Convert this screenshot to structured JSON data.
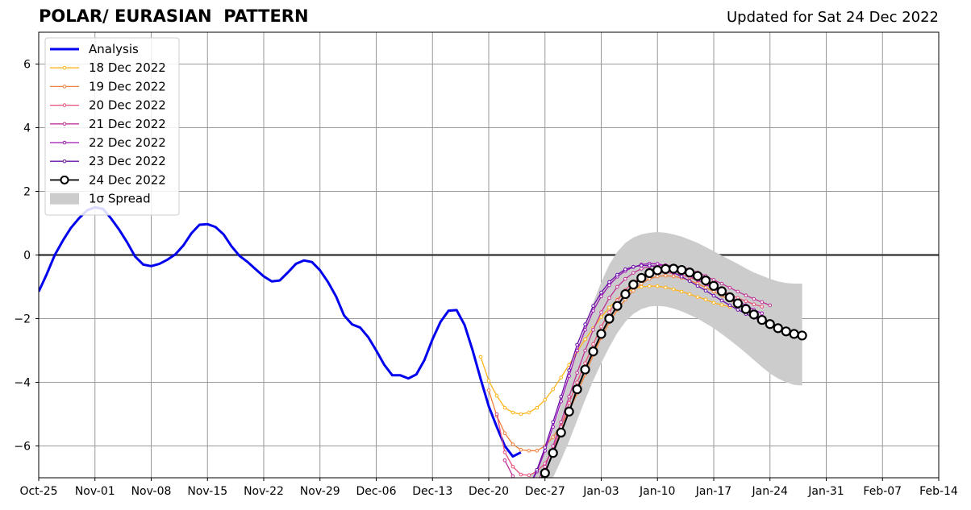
{
  "chart_data": {
    "type": "line",
    "title": "POLAR/ EURASIAN  PATTERN",
    "subtitle": "Updated for Sat 24 Dec 2022",
    "xlabel": "",
    "ylabel": "",
    "x_range": [
      "Oct-25",
      "Feb-14"
    ],
    "ylim": [
      -7,
      7
    ],
    "grid": true,
    "legend_position": "top-left",
    "x_tick_labels": [
      "Oct-25",
      "Nov-01",
      "Nov-08",
      "Nov-15",
      "Nov-22",
      "Nov-29",
      "Dec-06",
      "Dec-13",
      "Dec-20",
      "Dec-27",
      "Jan-03",
      "Jan-10",
      "Jan-17",
      "Jan-24",
      "Jan-31",
      "Feb-07",
      "Feb-14"
    ],
    "y_ticks": [
      -6,
      -4,
      -2,
      0,
      2,
      4,
      6
    ],
    "y_tick_labels": [
      "−6",
      "−4",
      "−2",
      "0",
      "2",
      "4",
      "6"
    ],
    "analysis": {
      "name": "Analysis",
      "color": "#0000ee",
      "start": "2022-10-25",
      "values": [
        -1.15,
        -0.6,
        0.0,
        0.45,
        0.85,
        1.15,
        1.4,
        1.5,
        1.45,
        1.15,
        0.8,
        0.4,
        -0.05,
        -0.3,
        -0.35,
        -0.28,
        -0.15,
        0.02,
        0.3,
        0.68,
        0.95,
        0.97,
        0.88,
        0.65,
        0.27,
        -0.03,
        -0.22,
        -0.45,
        -0.67,
        -0.83,
        -0.8,
        -0.55,
        -0.28,
        -0.17,
        -0.22,
        -0.48,
        -0.85,
        -1.3,
        -1.9,
        -2.18,
        -2.28,
        -2.58,
        -3.0,
        -3.45,
        -3.78,
        -3.78,
        -3.88,
        -3.75,
        -3.3,
        -2.65,
        -2.1,
        -1.75,
        -1.73,
        -2.2,
        -3.0,
        -3.9,
        -4.75,
        -5.4,
        -6.0,
        -6.33,
        -6.2
      ]
    },
    "forecasts": [
      {
        "name": "18 Dec 2022",
        "color": "#ffb31a",
        "start": "2022-12-19",
        "values": [
          -3.2,
          -3.95,
          -4.42,
          -4.8,
          -4.95,
          -5.0,
          -4.95,
          -4.8,
          -4.55,
          -4.22,
          -3.85,
          -3.45,
          -3.03,
          -2.65,
          -2.3,
          -1.95,
          -1.65,
          -1.4,
          -1.2,
          -1.07,
          -1.0,
          -0.98,
          -0.98,
          -1.02,
          -1.08,
          -1.15,
          -1.23,
          -1.32,
          -1.4,
          -1.5,
          -1.57,
          -1.63,
          -1.63
        ]
      },
      {
        "name": "19 Dec 2022",
        "color": "#f0803a",
        "start": "2022-12-20",
        "values": [
          -4.25,
          -5.05,
          -5.6,
          -5.95,
          -6.12,
          -6.15,
          -6.15,
          -6.0,
          -5.72,
          -5.35,
          -4.9,
          -4.35,
          -3.75,
          -3.15,
          -2.6,
          -2.12,
          -1.72,
          -1.4,
          -1.12,
          -0.9,
          -0.75,
          -0.67,
          -0.65,
          -0.67,
          -0.72,
          -0.8,
          -0.9,
          -1.02,
          -1.15,
          -1.28,
          -1.42,
          -1.55,
          -1.67
        ]
      },
      {
        "name": "20 Dec 2022",
        "color": "#e6507a",
        "start": "2022-12-21",
        "values": [
          -5.0,
          -6.2,
          -6.65,
          -6.9,
          -6.92,
          -6.8,
          -6.55,
          -6.1,
          -5.4,
          -4.65,
          -4.0,
          -3.4,
          -2.8,
          -2.25,
          -1.8,
          -1.42,
          -1.1,
          -0.85,
          -0.7,
          -0.6,
          -0.55,
          -0.55,
          -0.58,
          -0.63,
          -0.7,
          -0.8,
          -0.9,
          -1.0,
          -1.12,
          -1.23,
          -1.35,
          -1.45,
          -1.55,
          -1.62
        ]
      },
      {
        "name": "21 Dec 2022",
        "color": "#bf3399",
        "start": "2022-12-22",
        "values": [
          -6.45,
          -6.95,
          -7.3,
          -7.45,
          -7.15,
          -6.65,
          -6.0,
          -5.25,
          -4.45,
          -3.7,
          -3.0,
          -2.35,
          -1.8,
          -1.35,
          -1.0,
          -0.75,
          -0.56,
          -0.43,
          -0.36,
          -0.33,
          -0.32,
          -0.34,
          -0.38,
          -0.45,
          -0.55,
          -0.66,
          -0.78,
          -0.9,
          -1.03,
          -1.15,
          -1.27,
          -1.38,
          -1.48,
          -1.58
        ]
      },
      {
        "name": "22 Dec 2022",
        "color": "#9e16b3",
        "start": "2022-12-23",
        "values": [
          -7.5,
          -7.5,
          -7.3,
          -6.8,
          -6.15,
          -5.4,
          -4.6,
          -3.8,
          -3.0,
          -2.35,
          -1.75,
          -1.3,
          -0.95,
          -0.68,
          -0.5,
          -0.38,
          -0.3,
          -0.27,
          -0.28,
          -0.33,
          -0.42,
          -0.52,
          -0.65,
          -0.78,
          -0.92,
          -1.06,
          -1.19,
          -1.32,
          -1.45,
          -1.58,
          -1.72,
          -1.83
        ]
      },
      {
        "name": "23 Dec 2022",
        "color": "#6a0fa8",
        "start": "2022-12-24",
        "values": [
          -7.5,
          -7.3,
          -6.75,
          -6.05,
          -5.25,
          -4.45,
          -3.62,
          -2.82,
          -2.18,
          -1.6,
          -1.18,
          -0.85,
          -0.62,
          -0.45,
          -0.37,
          -0.33,
          -0.33,
          -0.37,
          -0.45,
          -0.55,
          -0.68,
          -0.82,
          -0.97,
          -1.12,
          -1.28,
          -1.43,
          -1.58,
          -1.72,
          -1.85,
          -1.97,
          -2.08,
          -2.18,
          -2.26
        ]
      },
      {
        "name": "24 Dec 2022",
        "color": "#000000",
        "start": "2022-12-25",
        "values": [
          -7.4,
          -7.2,
          -6.85,
          -6.22,
          -5.58,
          -4.92,
          -4.22,
          -3.6,
          -3.03,
          -2.48,
          -2.0,
          -1.6,
          -1.23,
          -0.93,
          -0.72,
          -0.57,
          -0.48,
          -0.44,
          -0.43,
          -0.47,
          -0.55,
          -0.66,
          -0.8,
          -0.97,
          -1.14,
          -1.33,
          -1.52,
          -1.7,
          -1.87,
          -2.04,
          -2.17,
          -2.3,
          -2.4,
          -2.48,
          -2.53
        ]
      }
    ],
    "spread": {
      "name": "1σ Spread",
      "color": "#cccccc",
      "start": "2022-12-25",
      "upper": [
        -7.0,
        -6.7,
        -6.2,
        -5.5,
        -4.7,
        -3.85,
        -3.0,
        -2.2,
        -1.5,
        -0.85,
        -0.3,
        0.1,
        0.38,
        0.55,
        0.65,
        0.7,
        0.72,
        0.7,
        0.65,
        0.58,
        0.48,
        0.38,
        0.25,
        0.12,
        -0.02,
        -0.15,
        -0.28,
        -0.42,
        -0.55,
        -0.65,
        -0.75,
        -0.83,
        -0.88,
        -0.9,
        -0.9
      ],
      "lower": [
        -8.0,
        -7.7,
        -7.45,
        -7.0,
        -6.45,
        -5.85,
        -5.2,
        -4.55,
        -3.95,
        -3.4,
        -2.9,
        -2.45,
        -2.1,
        -1.85,
        -1.7,
        -1.62,
        -1.6,
        -1.62,
        -1.68,
        -1.77,
        -1.88,
        -2.0,
        -2.15,
        -2.3,
        -2.48,
        -2.67,
        -2.87,
        -3.08,
        -3.3,
        -3.52,
        -3.72,
        -3.88,
        -4.0,
        -4.08,
        -4.1
      ]
    }
  }
}
